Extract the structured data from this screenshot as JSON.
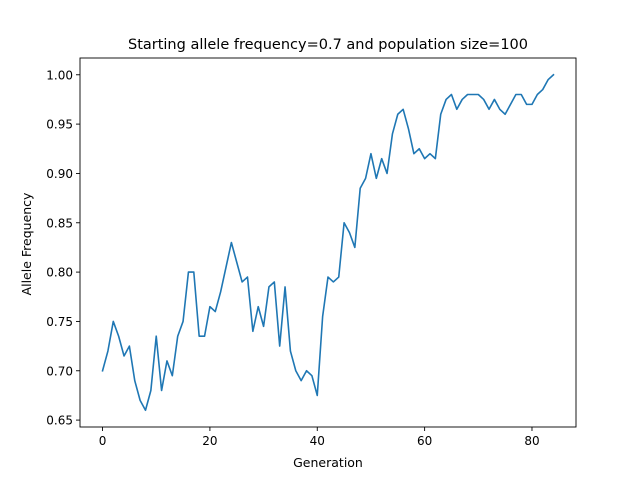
{
  "chart_data": {
    "type": "line",
    "title": "Starting allele frequency=0.7 and population size=100",
    "xlabel": "Generation",
    "ylabel": "Allele Frequency",
    "xlim": [
      -4.2,
      88.2
    ],
    "ylim": [
      0.643,
      1.017
    ],
    "xticks": [
      0,
      20,
      40,
      60,
      80
    ],
    "yticks": [
      0.65,
      0.7,
      0.75,
      0.8,
      0.85,
      0.9,
      0.95,
      1.0
    ],
    "ytick_labels": [
      "0.65",
      "0.70",
      "0.75",
      "0.80",
      "0.85",
      "0.90",
      "0.95",
      "1.00"
    ],
    "grid": false,
    "line_color": "#1f77b4",
    "series": [
      {
        "x": [
          0,
          1,
          2,
          3,
          4,
          5,
          6,
          7,
          8,
          9,
          10,
          11,
          12,
          13,
          14,
          15,
          16,
          17,
          18,
          19,
          20,
          21,
          22,
          23,
          24,
          25,
          26,
          27,
          28,
          29,
          30,
          31,
          32,
          33,
          34,
          35,
          36,
          37,
          38,
          39,
          40,
          41,
          42,
          43,
          44,
          45,
          46,
          47,
          48,
          49,
          50,
          51,
          52,
          53,
          54,
          55,
          56,
          57,
          58,
          59,
          60,
          61,
          62,
          63,
          64,
          65,
          66,
          67,
          68,
          69,
          70,
          71,
          72,
          73,
          74,
          75,
          76,
          77,
          78,
          79,
          80,
          81,
          82,
          83,
          84
        ],
        "values": [
          0.7,
          0.72,
          0.75,
          0.735,
          0.715,
          0.725,
          0.69,
          0.67,
          0.66,
          0.68,
          0.735,
          0.68,
          0.71,
          0.695,
          0.735,
          0.75,
          0.8,
          0.8,
          0.735,
          0.735,
          0.765,
          0.76,
          0.78,
          0.805,
          0.83,
          0.81,
          0.79,
          0.795,
          0.74,
          0.765,
          0.745,
          0.785,
          0.79,
          0.725,
          0.785,
          0.72,
          0.7,
          0.69,
          0.7,
          0.695,
          0.675,
          0.755,
          0.795,
          0.79,
          0.795,
          0.85,
          0.84,
          0.825,
          0.885,
          0.895,
          0.92,
          0.895,
          0.915,
          0.9,
          0.94,
          0.96,
          0.965,
          0.945,
          0.92,
          0.925,
          0.915,
          0.92,
          0.915,
          0.96,
          0.975,
          0.98,
          0.965,
          0.975,
          0.98,
          0.98,
          0.98,
          0.975,
          0.965,
          0.975,
          0.965,
          0.96,
          0.97,
          0.98,
          0.98,
          0.97,
          0.97,
          0.98,
          0.985,
          0.995,
          1.0
        ]
      }
    ]
  }
}
